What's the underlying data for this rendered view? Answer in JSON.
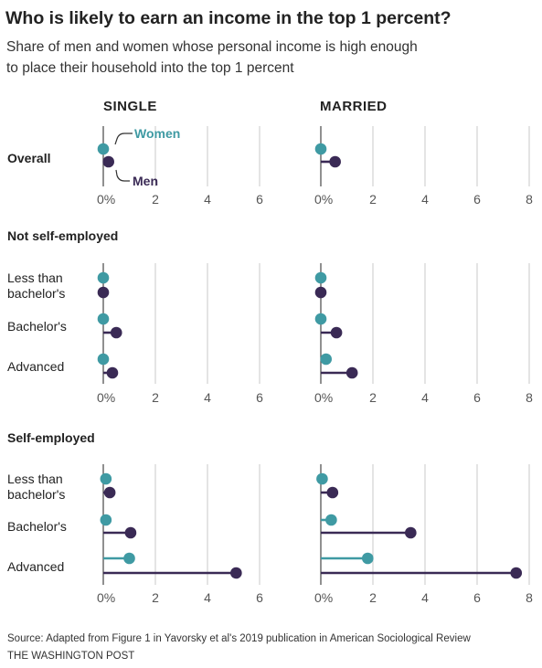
{
  "title": "Who is likely to earn an income in the top 1 percent?",
  "subtitle_line1": "Share of men and women whose personal income is high enough",
  "subtitle_line2": "to place their household into the top 1 percent",
  "source": "Source: Adapted from Figure 1 in Yavorsky et al's 2019 publication in American Sociological Review",
  "credit": "THE WASHINGTON POST",
  "annotations": {
    "women": "Women",
    "men": "Men"
  },
  "colors": {
    "women": "#3f9aa3",
    "men": "#3a2a55",
    "grid": "#c8c8c8",
    "axis": "#555555"
  },
  "chart_data": {
    "type": "scatter",
    "panels": [
      {
        "name": "SINGLE",
        "ticks": [
          0,
          2,
          4,
          6
        ],
        "tick_labels": [
          "0%",
          "2",
          "4",
          "6"
        ],
        "xlim": [
          0,
          6
        ]
      },
      {
        "name": "MARRIED",
        "ticks": [
          0,
          2,
          4,
          6,
          8
        ],
        "tick_labels": [
          "0%",
          "2",
          "4",
          "6",
          "8"
        ],
        "xlim": [
          0,
          8
        ]
      }
    ],
    "sections": [
      {
        "title": "",
        "rows": [
          {
            "label": [
              "Overall"
            ],
            "single": {
              "women": 0.0,
              "men": 0.2
            },
            "married": {
              "women": 0.0,
              "men": 0.55
            }
          }
        ]
      },
      {
        "title": "Not self-employed",
        "rows": [
          {
            "label": [
              "Less than",
              "bachelor's"
            ],
            "single": {
              "women": 0.0,
              "men": 0.0
            },
            "married": {
              "women": 0.0,
              "men": 0.0
            }
          },
          {
            "label": [
              "Bachelor's"
            ],
            "single": {
              "women": 0.0,
              "men": 0.5
            },
            "married": {
              "women": 0.0,
              "men": 0.6
            }
          },
          {
            "label": [
              "Advanced"
            ],
            "single": {
              "women": 0.0,
              "men": 0.35
            },
            "married": {
              "women": 0.2,
              "men": 1.2
            }
          }
        ]
      },
      {
        "title": "Self-employed",
        "rows": [
          {
            "label": [
              "Less than",
              "bachelor's"
            ],
            "single": {
              "women": 0.1,
              "men": 0.25
            },
            "married": {
              "women": 0.05,
              "men": 0.45
            }
          },
          {
            "label": [
              "Bachelor's"
            ],
            "single": {
              "women": 0.1,
              "men": 1.05
            },
            "married": {
              "women": 0.4,
              "men": 3.45
            }
          },
          {
            "label": [
              "Advanced"
            ],
            "single": {
              "women": 1.0,
              "men": 5.1
            },
            "married": {
              "women": 1.8,
              "men": 7.5
            }
          }
        ]
      }
    ]
  }
}
